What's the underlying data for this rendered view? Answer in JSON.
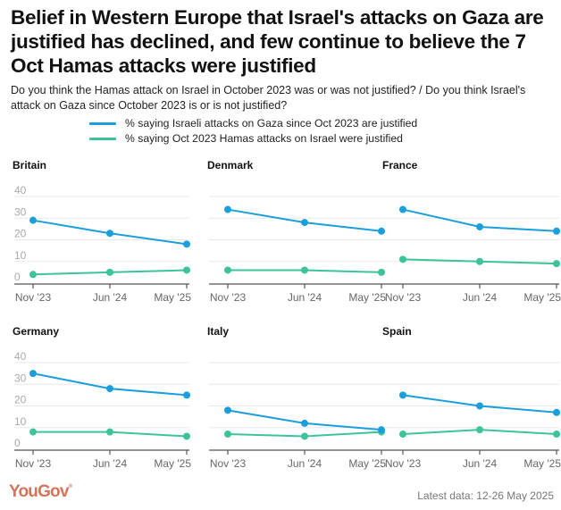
{
  "header": {
    "title": "Belief in Western Europe that Israel's attacks on Gaza are justified has declined, and few continue to believe the 7 Oct Hamas attacks were justified",
    "subtitle": "Do you think the Hamas attack on Israel in October 2023 was or was not justified? / Do you think Israel's attack on Gaza since October 2023 is or is not justified?"
  },
  "legend": [
    {
      "label": "% saying Israeli attacks on Gaza since Oct 2023 are justified",
      "color": "#1a9fdc"
    },
    {
      "label": "% saying Oct 2023 Hamas attacks on Israel were justified",
      "color": "#3cc39a"
    }
  ],
  "footer": {
    "logo": "YouGov",
    "note": "Latest data: 12-26 May 2025"
  },
  "chart_data": {
    "type": "line",
    "title": "Belief in Western Europe that Israel's attacks on Gaza are justified has declined, and few continue to believe the 7 Oct Hamas attacks were justified",
    "x": [
      "Nov '23",
      "Jun '24",
      "May '25"
    ],
    "ylim": [
      0,
      40
    ],
    "yticks": [
      0,
      10,
      20,
      30,
      40
    ],
    "grid": true,
    "legend_position": "top",
    "series_names": [
      "% saying Israeli attacks on Gaza since Oct 2023 are justified",
      "% saying Oct 2023 Hamas attacks on Israel were justified"
    ],
    "series_colors": [
      "#1a9fdc",
      "#3cc39a"
    ],
    "panels": [
      {
        "name": "Britain",
        "show_y_labels": true,
        "series": [
          {
            "name": "Israel attacks justified",
            "values": [
              29,
              23,
              18
            ]
          },
          {
            "name": "Hamas attacks justified",
            "values": [
              4,
              5,
              6
            ]
          }
        ]
      },
      {
        "name": "Denmark",
        "show_y_labels": false,
        "series": [
          {
            "name": "Israel attacks justified",
            "values": [
              34,
              28,
              24
            ]
          },
          {
            "name": "Hamas attacks justified",
            "values": [
              6,
              6,
              5
            ]
          }
        ]
      },
      {
        "name": "France",
        "show_y_labels": false,
        "series": [
          {
            "name": "Israel attacks justified",
            "values": [
              34,
              26,
              24
            ]
          },
          {
            "name": "Hamas attacks justified",
            "values": [
              11,
              10,
              9
            ]
          }
        ]
      },
      {
        "name": "Germany",
        "show_y_labels": true,
        "series": [
          {
            "name": "Israel attacks justified",
            "values": [
              35,
              28,
              25
            ]
          },
          {
            "name": "Hamas attacks justified",
            "values": [
              8,
              8,
              6
            ]
          }
        ]
      },
      {
        "name": "Italy",
        "show_y_labels": false,
        "series": [
          {
            "name": "Israel attacks justified",
            "values": [
              18,
              12,
              9
            ]
          },
          {
            "name": "Hamas attacks justified",
            "values": [
              7,
              6,
              8
            ]
          }
        ]
      },
      {
        "name": "Spain",
        "show_y_labels": false,
        "series": [
          {
            "name": "Israel attacks justified",
            "values": [
              25,
              20,
              17
            ]
          },
          {
            "name": "Hamas attacks justified",
            "values": [
              7,
              9,
              7
            ]
          }
        ]
      }
    ]
  }
}
